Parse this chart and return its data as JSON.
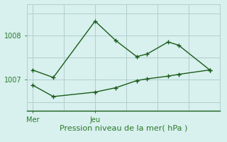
{
  "line1_x": [
    0,
    2,
    6,
    8,
    10,
    11,
    13,
    14,
    17
  ],
  "line1_y": [
    1007.22,
    1007.05,
    1008.32,
    1007.88,
    1007.52,
    1007.58,
    1007.85,
    1007.78,
    1007.22
  ],
  "line2_x": [
    0,
    2,
    6,
    8,
    10,
    11,
    13,
    14,
    17
  ],
  "line2_y": [
    1006.88,
    1006.62,
    1006.72,
    1006.82,
    1006.98,
    1007.02,
    1007.08,
    1007.12,
    1007.22
  ],
  "xtick_positions": [
    0,
    6
  ],
  "xtick_labels": [
    "Mer",
    "Jeu"
  ],
  "ytick_positions": [
    1007,
    1008
  ],
  "ytick_labels": [
    "1007",
    "1008"
  ],
  "ylim": [
    1006.3,
    1008.7
  ],
  "xlim": [
    -0.5,
    18
  ],
  "xlabel": "Pression niveau de la mer( hPa )",
  "bg_color": "#d8f0ee",
  "line_color": "#1a5c1a",
  "grid_color": "#b0cece",
  "marker": "+",
  "markersize": 4,
  "linewidth": 1.0,
  "xlabel_fontsize": 8,
  "tick_fontsize": 7,
  "tick_color": "#2a7a2a",
  "fig_width": 3.2,
  "fig_height": 2.0,
  "dpi": 100
}
